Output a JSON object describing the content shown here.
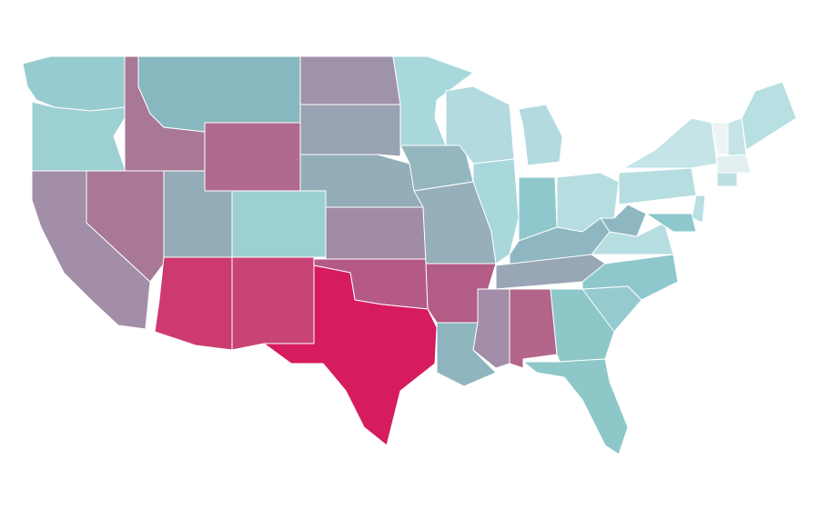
{
  "map": {
    "fills": [
      "#96cbcf",
      "#9dd0d2",
      "#a87896",
      "#88b8bf",
      "#b06a8f",
      "#a28ea8",
      "#a87896",
      "#93acb7",
      "#9dd0d2",
      "#cc3a70",
      "#c84476",
      "#9f93aa",
      "#98a2b2",
      "#94aeb9",
      "#a08ca6",
      "#b55a87",
      "#d61b5f",
      "#a9d8dc",
      "#94b6bf",
      "#96afba",
      "#b35c86",
      "#8fb5bf",
      "#b2dadf",
      "#a9d8dc",
      "#b2dadf",
      "#8ec8cc",
      "#b6dee1",
      "#8eb7c2",
      "#98a6b5",
      "#a28ea8",
      "#b36689",
      "#8ec7c8",
      "#8ec7c8",
      "#95cbcf",
      "#8ec8cc",
      "#b6dee1",
      "#8eb7c2",
      "#b6dee1",
      "#c4e4e7",
      "#eef3f4",
      "#c4e4e7",
      "#b8dfe2",
      "#e2f0f2",
      "#bfe0e3",
      "#b8dfe2",
      "#8ec8cc"
    ]
  }
}
